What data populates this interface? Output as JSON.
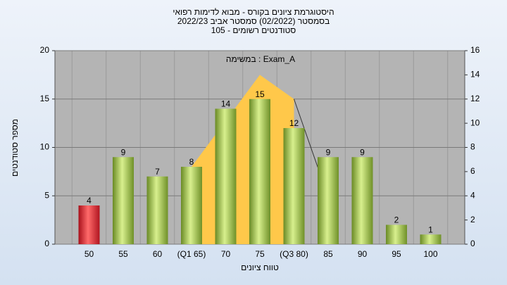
{
  "chart_data": {
    "type": "bar",
    "title": [
      "היסטוגרמת ציונים בקורס - מבוא לדימות רפואי",
      "בסמסטר (02/2022)  סמסטר אביב 2022/23",
      "סטודנטים רשומים - 105"
    ],
    "annotation": "במשימה : Exam_A",
    "x_label": "טווח ציונים",
    "y_label": "מספר סטודנטים",
    "categories": [
      "50",
      "55",
      "60",
      "(Q1 65)",
      "70",
      "75",
      "(Q3 80)",
      "85",
      "90",
      "95",
      "100"
    ],
    "values": [
      4,
      9,
      7,
      8,
      14,
      15,
      12,
      9,
      9,
      2,
      1
    ],
    "colors": [
      "red",
      "green",
      "green",
      "green",
      "green",
      "green",
      "green",
      "green",
      "green",
      "green",
      "green"
    ],
    "ylim": [
      0,
      20
    ],
    "yticks": [
      0,
      5,
      10,
      15,
      20
    ],
    "y2lim": [
      0,
      16
    ],
    "y2ticks": [
      0,
      2,
      4,
      6,
      8,
      10,
      12,
      14,
      16
    ],
    "curve": {
      "axis": "y2",
      "color": "#ffc84a",
      "values": [
        null,
        null,
        null,
        6.4,
        10.2,
        14,
        12,
        3.9,
        null,
        null,
        null
      ]
    },
    "grid": true
  }
}
